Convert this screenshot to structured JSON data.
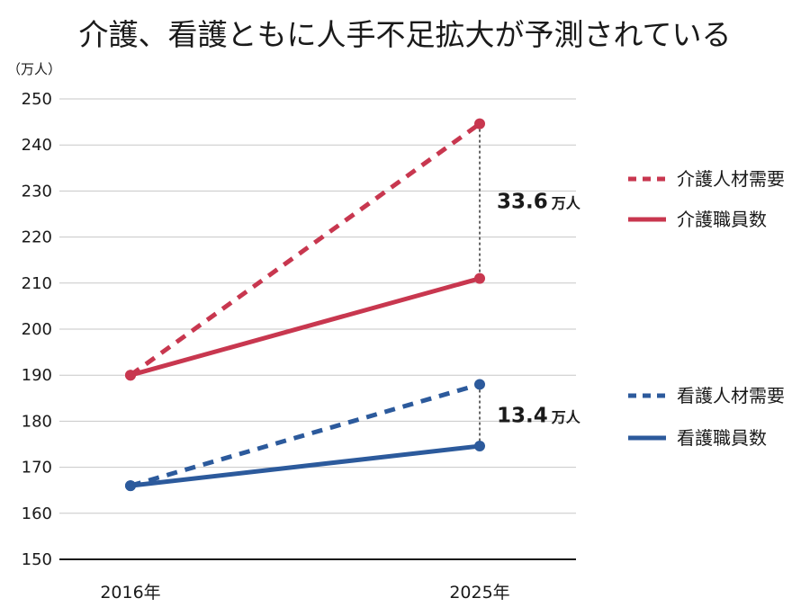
{
  "chart_data": {
    "type": "line",
    "title": "介護、看護ともに人手不足拡大が予測されている",
    "y_unit": "（万人）",
    "categories": [
      "2016年",
      "2025年"
    ],
    "ylim": [
      150,
      250
    ],
    "yticks": [
      150,
      160,
      170,
      180,
      190,
      200,
      210,
      220,
      230,
      240,
      250
    ],
    "grid": true,
    "series": [
      {
        "name": "介護人材需要",
        "values": [
          190,
          244.6
        ],
        "color": "#c8374f",
        "style": "dashed"
      },
      {
        "name": "介護職員数",
        "values": [
          190,
          211
        ],
        "color": "#c8374f",
        "style": "solid"
      },
      {
        "name": "看護人材需要",
        "values": [
          166,
          188
        ],
        "color": "#2c5a9c",
        "style": "dashed"
      },
      {
        "name": "看護職員数",
        "values": [
          166,
          174.6
        ],
        "color": "#2c5a9c",
        "style": "solid"
      }
    ],
    "annotations": [
      {
        "value": "33.6",
        "unit": "万人",
        "between": [
          "介護人材需要",
          "介護職員数"
        ]
      },
      {
        "value": "13.4",
        "unit": "万人",
        "between": [
          "看護人材需要",
          "看護職員数"
        ]
      }
    ],
    "legend": "right"
  }
}
